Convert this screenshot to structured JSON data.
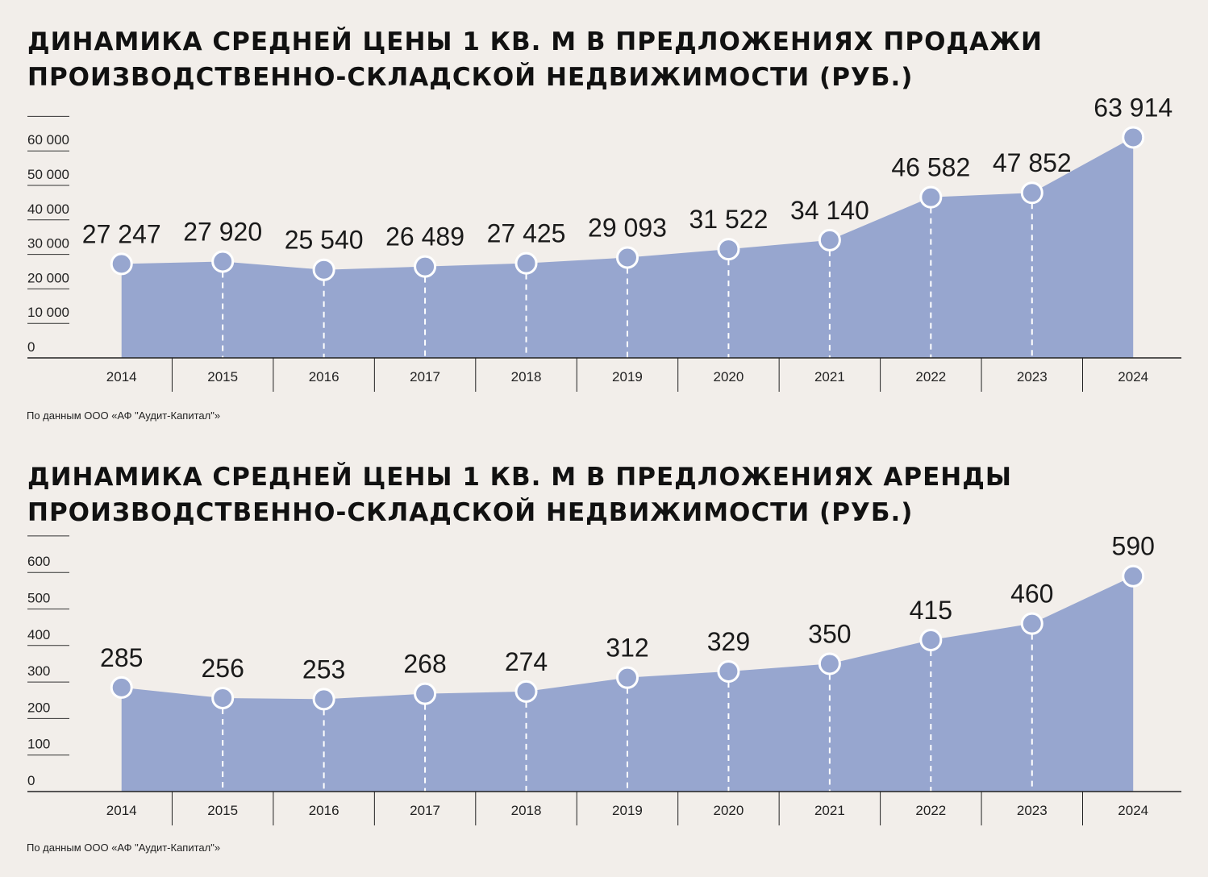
{
  "colors": {
    "area": "#97a6cf",
    "marker": "#97a6cf",
    "marker_stroke": "#ffffff",
    "background": "#f2eeea",
    "axis": "#222222"
  },
  "chart_data": [
    {
      "type": "area",
      "title_lines": [
        "ДИНАМИКА СРЕДНЕЙ ЦЕНЫ 1 КВ. М В ПРЕДЛОЖЕНИЯХ ПРОДАЖИ",
        "ПРОИЗВОДСТВЕННО-СКЛАДСКОЙ НЕДВИЖИМОСТИ (РУБ.)"
      ],
      "categories": [
        "2014",
        "2015",
        "2016",
        "2017",
        "2018",
        "2019",
        "2020",
        "2021",
        "2022",
        "2023",
        "2024"
      ],
      "values": [
        27247,
        27920,
        25540,
        26489,
        27425,
        29093,
        31522,
        34140,
        46582,
        47852,
        63914
      ],
      "value_labels": [
        "27 247",
        "27 920",
        "25 540",
        "26 489",
        "27 425",
        "29 093",
        "31 522",
        "34 140",
        "46 582",
        "47 852",
        "63 914"
      ],
      "y_ticks": [
        "0",
        "10 000",
        "20 000",
        "30 000",
        "40 000",
        "50 000",
        "60 000"
      ],
      "ylim": [
        0,
        70000
      ],
      "grid": false,
      "source": "По данным ООО «АФ \"Аудит-Капитал\"»"
    },
    {
      "type": "area",
      "title_lines": [
        "ДИНАМИКА СРЕДНЕЙ ЦЕНЫ 1 КВ. М В ПРЕДЛОЖЕНИЯХ АРЕНДЫ",
        "ПРОИЗВОДСТВЕННО-СКЛАДСКОЙ НЕДВИЖИМОСТИ (РУБ.)"
      ],
      "categories": [
        "2014",
        "2015",
        "2016",
        "2017",
        "2018",
        "2019",
        "2020",
        "2021",
        "2022",
        "2023",
        "2024"
      ],
      "values": [
        285,
        256,
        253,
        268,
        274,
        312,
        329,
        350,
        415,
        460,
        590
      ],
      "value_labels": [
        "285",
        "256",
        "253",
        "268",
        "274",
        "312",
        "329",
        "350",
        "415",
        "460",
        "590"
      ],
      "y_ticks": [
        "0",
        "100",
        "200",
        "300",
        "400",
        "500",
        "600"
      ],
      "ylim": [
        0,
        700
      ],
      "grid": false,
      "source": "По данным ООО «АФ \"Аудит-Капитал\"»"
    }
  ]
}
